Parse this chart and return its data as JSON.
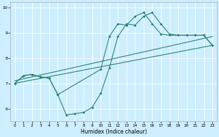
{
  "xlabel": "Humidex (Indice chaleur)",
  "bg_color": "#cceeff",
  "grid_color": "#ffffff",
  "line_color": "#2d7f6e",
  "xlim": [
    -0.5,
    23.5
  ],
  "ylim": [
    5.5,
    10.2
  ],
  "yticks": [
    6,
    7,
    8,
    9,
    10
  ],
  "xticks": [
    0,
    1,
    2,
    3,
    4,
    5,
    6,
    7,
    8,
    9,
    10,
    11,
    12,
    13,
    14,
    15,
    16,
    17,
    18,
    19,
    20,
    21,
    22,
    23
  ],
  "line1_x": [
    0,
    1,
    2,
    3,
    4,
    5,
    6,
    7,
    8,
    9,
    10,
    11,
    12,
    13,
    14,
    15,
    16,
    17,
    18,
    19,
    20,
    21,
    22,
    23
  ],
  "line1_y": [
    7.0,
    7.3,
    7.35,
    7.25,
    7.2,
    6.55,
    5.75,
    5.8,
    5.85,
    6.05,
    6.6,
    7.6,
    8.85,
    9.35,
    9.3,
    9.65,
    9.8,
    9.35,
    8.95,
    8.9,
    8.9,
    8.9,
    8.9,
    8.5
  ],
  "line2_x": [
    0,
    1,
    2,
    3,
    4,
    5,
    10,
    11,
    12,
    13,
    14,
    15,
    16,
    17,
    18,
    19,
    20,
    21,
    22,
    23
  ],
  "line2_y": [
    7.0,
    7.3,
    7.35,
    7.25,
    7.2,
    6.55,
    7.55,
    8.85,
    9.35,
    9.3,
    9.65,
    9.8,
    9.35,
    8.95,
    8.9,
    8.9,
    8.9,
    8.9,
    8.9,
    8.5
  ],
  "line3_x": [
    0,
    23
  ],
  "line3_y": [
    7.1,
    8.85
  ],
  "line4_x": [
    0,
    23
  ],
  "line4_y": [
    7.0,
    8.5
  ]
}
